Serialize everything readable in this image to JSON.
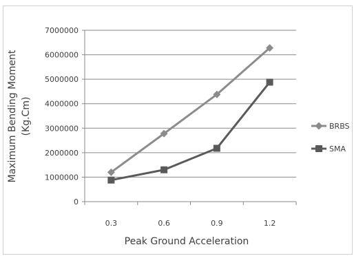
{
  "chart_data": {
    "type": "line",
    "title": "",
    "xlabel": "Peak Ground Acceleration",
    "ylabel_lines": [
      "Maximum Bending Moment",
      "(Kg.Cm)"
    ],
    "categories": [
      "0.3",
      "0.6",
      "0.9",
      "1.2"
    ],
    "ylim": [
      0,
      7000000
    ],
    "ytick_step": 1000000,
    "yticks": [
      "0",
      "1000000",
      "2000000",
      "3000000",
      "4000000",
      "5000000",
      "6000000",
      "7000000"
    ],
    "grid": true,
    "legend_position": "right",
    "series": [
      {
        "name": "BRBS",
        "values": [
          1200000,
          2780000,
          4380000,
          6280000
        ],
        "marker": "diamond",
        "color": "#8c8c8c"
      },
      {
        "name": "SMA",
        "values": [
          880000,
          1300000,
          2180000,
          4880000
        ],
        "marker": "square",
        "color": "#5a5a5a"
      }
    ]
  }
}
